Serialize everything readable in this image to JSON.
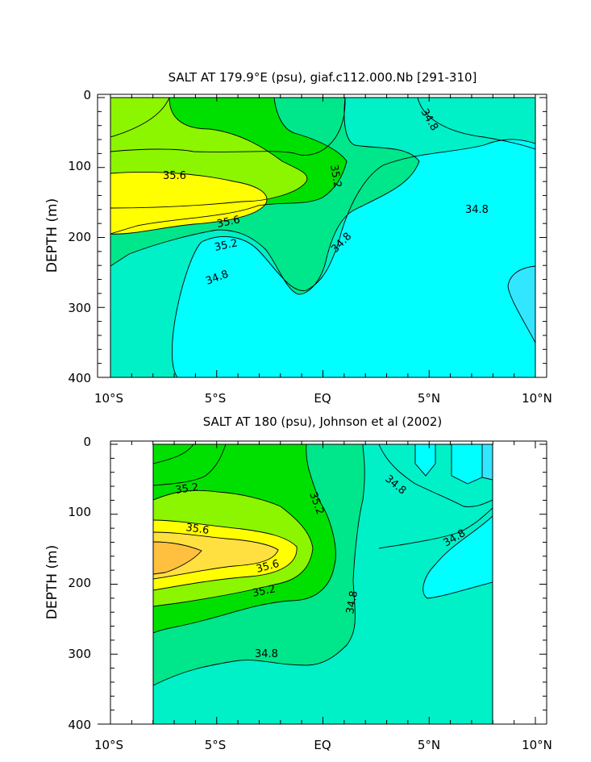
{
  "chart_data": [
    {
      "type": "contour",
      "title": "SALT AT 179.9°E (psu), giaf.c112.000.Nb [291-310]",
      "xlabel": "",
      "ylabel": "DEPTH (m)",
      "x_ticks": [
        "10°S",
        "5°S",
        "EQ",
        "5°N",
        "10°N"
      ],
      "x_tick_values": [
        -10,
        -5,
        0,
        5,
        10
      ],
      "y_ticks": [
        "0",
        "100",
        "200",
        "300",
        "400"
      ],
      "y_tick_values": [
        0,
        100,
        200,
        300,
        400
      ],
      "xlim": [
        -10,
        10
      ],
      "ylim": [
        0,
        400
      ],
      "data_extent_x": [
        -10,
        10
      ],
      "colors": {
        "lt34.8": "#00ffff",
        "lt34.4": "#33e6ff",
        "34.8-35.0": "#00f0c8",
        "35.0-35.2": "#00e68a",
        "35.2-35.4": "#00e000",
        "35.4-35.6": "#8cf500",
        "35.6-35.8": "#ffff00"
      },
      "contour_labels": [
        {
          "text": "34.8",
          "lon": 4.6,
          "depth": 20
        },
        {
          "text": "35.6",
          "lon": -7,
          "depth": 110
        },
        {
          "text": "35.2",
          "lon": 0.3,
          "depth": 112
        },
        {
          "text": "35.6",
          "lon": -4.6,
          "depth": 170
        },
        {
          "text": "34.8",
          "lon": 7.1,
          "depth": 157
        },
        {
          "text": "35.2",
          "lon": -4.6,
          "depth": 210
        },
        {
          "text": "34.8",
          "lon": 1.1,
          "depth": 205
        },
        {
          "text": "34.8",
          "lon": -5.0,
          "depth": 255
        }
      ]
    },
    {
      "type": "contour",
      "title": "SALT AT 180 (psu), Johnson et al (2002)",
      "xlabel": "",
      "ylabel": "DEPTH (m)",
      "x_ticks": [
        "10°S",
        "5°S",
        "EQ",
        "5°N",
        "10°N"
      ],
      "x_tick_values": [
        -10,
        -5,
        0,
        5,
        10
      ],
      "y_ticks": [
        "0",
        "100",
        "200",
        "300",
        "400"
      ],
      "y_tick_values": [
        0,
        100,
        200,
        300,
        400
      ],
      "xlim": [
        -10,
        10
      ],
      "ylim": [
        0,
        400
      ],
      "data_extent_x": [
        -8,
        8
      ],
      "colors": {
        "lt34.8": "#00ffff",
        "34.8-35.0": "#00f0c8",
        "35.0-35.2": "#00e68a",
        "35.2-35.4": "#00e000",
        "35.4-35.6": "#8cf500",
        "35.6-35.8": "#ffff00",
        "35.8-36.0": "#ffe040",
        "gt36.0": "#ffc040"
      },
      "contour_labels": [
        {
          "text": "35.2",
          "lon": -6.2,
          "depth": 65
        },
        {
          "text": "35.2",
          "lon": -0.5,
          "depth": 85
        },
        {
          "text": "34.8",
          "lon": 3.4,
          "depth": 65
        },
        {
          "text": "35.6",
          "lon": -5.5,
          "depth": 125
        },
        {
          "text": "34.8",
          "lon": 6.2,
          "depth": 132
        },
        {
          "text": "35.6",
          "lon": -2.5,
          "depth": 180
        },
        {
          "text": "35.2",
          "lon": -3.1,
          "depth": 205
        },
        {
          "text": "34.8",
          "lon": 1.3,
          "depth": 215
        },
        {
          "text": "34.8",
          "lon": -3.2,
          "depth": 300
        }
      ]
    }
  ]
}
